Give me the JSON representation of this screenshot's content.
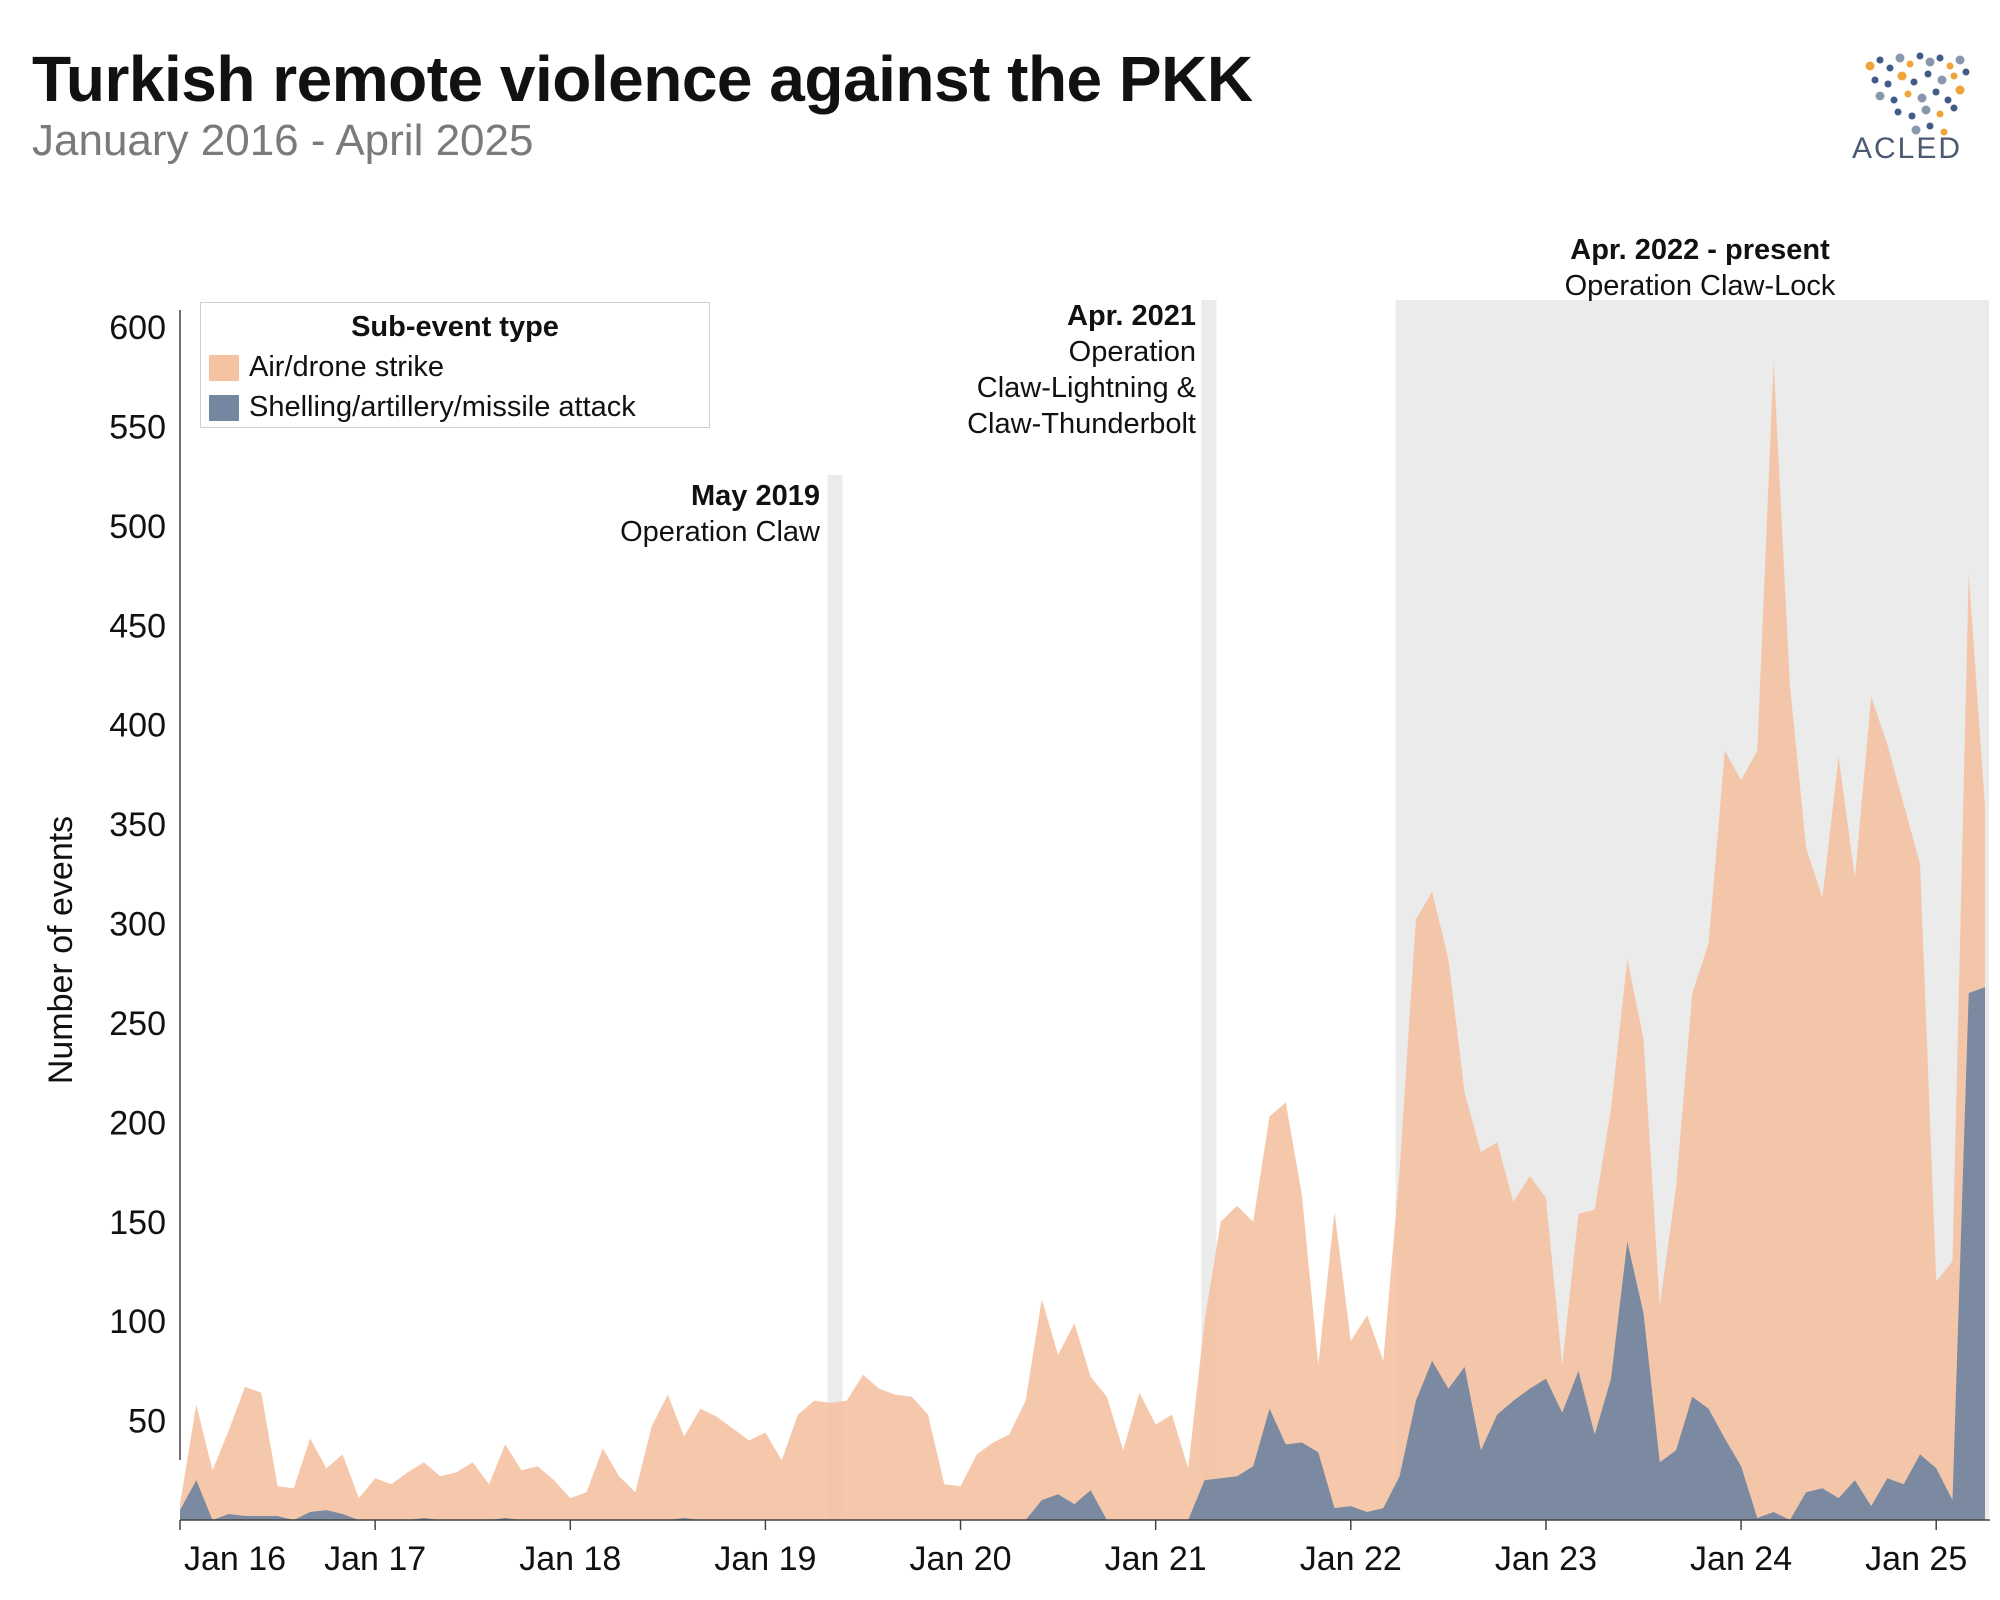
{
  "header": {
    "title": "Turkish remote violence against the PKK",
    "subtitle": "January 2016 - April 2025",
    "logo_text": "ACLED"
  },
  "colors": {
    "air": "#f5c2a2",
    "shelling": "#7487a0",
    "band": "#ebebeb"
  },
  "legend": {
    "title": "Sub-event type",
    "items": [
      "Air/drone strike",
      "Shelling/artillery/missile attack"
    ]
  },
  "annotations": [
    {
      "title": "May 2019",
      "text": "Operation Claw"
    },
    {
      "title": "Apr. 2021",
      "text": "Operation Claw-Lightning & Claw-Thunderbolt",
      "lines": [
        "Operation",
        "Claw-Lightning &",
        "Claw-Thunderbolt"
      ]
    },
    {
      "title": "Apr. 2022 - present",
      "text": "Operation Claw-Lock"
    }
  ],
  "chart_data": {
    "type": "area",
    "title": "Turkish remote violence against the PKK",
    "subtitle": "January 2016 - April 2025",
    "ylabel": "Number of events",
    "xlabel": "",
    "ylim": [
      0,
      610
    ],
    "yticks": [
      50,
      100,
      150,
      200,
      250,
      300,
      350,
      400,
      450,
      500,
      550,
      600
    ],
    "xticks": [
      "Jan 16",
      "Jan 17",
      "Jan 18",
      "Jan 19",
      "Jan 20",
      "Jan 21",
      "Jan 22",
      "Jan 23",
      "Jan 24",
      "Jan 25"
    ],
    "x_start": "2016-01",
    "x_end": "2025-04",
    "stacked": false,
    "legend_position": "top-left",
    "shaded_periods": [
      {
        "label": "May 2019",
        "from": "2019-05",
        "to": "2019-05"
      },
      {
        "label": "Apr. 2021",
        "from": "2021-04",
        "to": "2021-04"
      },
      {
        "label": "Apr. 2022 - present",
        "from": "2022-04",
        "to": "2025-04"
      }
    ],
    "series": [
      {
        "name": "Air/drone strike",
        "values": [
          8,
          58,
          25,
          45,
          67,
          64,
          17,
          16,
          41,
          26,
          33,
          11,
          21,
          18,
          24,
          29,
          22,
          24,
          29,
          18,
          38,
          25,
          27,
          20,
          11,
          14,
          36,
          22,
          14,
          47,
          63,
          42,
          56,
          52,
          46,
          40,
          44,
          30,
          53,
          60,
          59,
          60,
          73,
          66,
          63,
          62,
          53,
          18,
          17,
          33,
          39,
          43,
          60,
          111,
          83,
          99,
          72,
          62,
          35,
          64,
          48,
          53,
          26,
          100,
          150,
          158,
          150,
          203,
          210,
          163,
          78,
          155,
          90,
          103,
          80,
          176,
          302,
          316,
          282,
          215,
          185,
          190,
          160,
          173,
          162,
          78,
          154,
          156,
          207,
          282,
          242,
          108,
          167,
          265,
          290,
          387,
          372,
          387,
          583,
          420,
          338,
          313,
          384,
          323,
          414,
          390,
          360,
          330,
          120,
          130,
          476,
          359
        ],
        "shading_mark_months": []
      },
      {
        "name": "Shelling/artillery/missile attack",
        "values": [
          5,
          20,
          0,
          3,
          2,
          2,
          2,
          0,
          4,
          5,
          3,
          0,
          0,
          0,
          0,
          1,
          0,
          0,
          0,
          0,
          1,
          0,
          0,
          0,
          0,
          0,
          0,
          0,
          0,
          0,
          0,
          1,
          0,
          0,
          0,
          0,
          0,
          0,
          0,
          0,
          0,
          0,
          0,
          0,
          0,
          0,
          0,
          0,
          0,
          0,
          0,
          0,
          0,
          10,
          13,
          8,
          15,
          0,
          0,
          0,
          0,
          0,
          0,
          20,
          21,
          22,
          27,
          56,
          38,
          39,
          34,
          6,
          7,
          4,
          6,
          22,
          60,
          80,
          66,
          77,
          35,
          53,
          60,
          66,
          71,
          54,
          75,
          43,
          71,
          140,
          104,
          29,
          35,
          62,
          56,
          41,
          27,
          1,
          4,
          0,
          14,
          16,
          11,
          20,
          7,
          21,
          18,
          33,
          26,
          10,
          265,
          268
        ]
      }
    ]
  }
}
